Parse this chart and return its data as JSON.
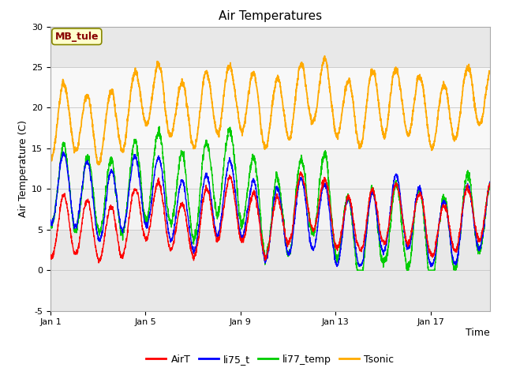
{
  "title": "Air Temperatures",
  "xlabel": "Time",
  "ylabel": "Air Temperature (C)",
  "ylim": [
    -5,
    30
  ],
  "xlim_days": [
    0,
    18.5
  ],
  "xticks": [
    0,
    4,
    8,
    12,
    16
  ],
  "xtick_labels": [
    "Jan 1",
    "Jan 5",
    "Jan 9",
    "Jan 13",
    "Jan 17"
  ],
  "yticks": [
    -5,
    0,
    5,
    10,
    15,
    20,
    25,
    30
  ],
  "grid_color": "#cccccc",
  "fig_bg_color": "#ffffff",
  "plot_bg_color": "#e8e8e8",
  "band1": [
    5,
    15
  ],
  "band2": [
    15,
    25
  ],
  "band1_color": "#d8d8d8",
  "band2_color": "#c8c8c8",
  "line_colors": {
    "AirT": "#ff0000",
    "li75_t": "#0000ff",
    "li77_temp": "#00cc00",
    "Tsonic": "#ffaa00"
  },
  "line_width": 1.0,
  "annotation_text": "MB_tule",
  "annotation_color": "#880000",
  "annotation_bg": "#ffffcc",
  "annotation_border": "#888800",
  "legend_fontsize": 9,
  "title_fontsize": 11,
  "axis_label_fontsize": 9,
  "tick_fontsize": 8
}
